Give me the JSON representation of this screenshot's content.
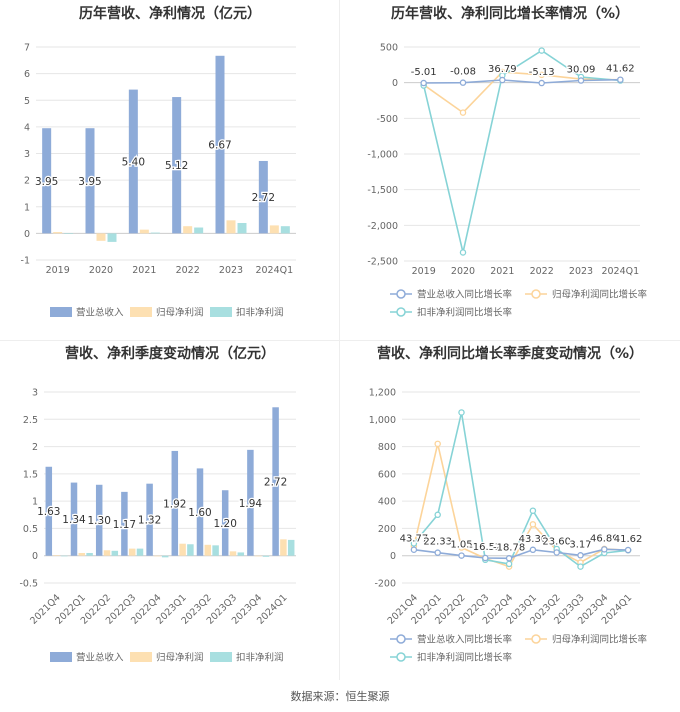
{
  "source_text": "数据来源：恒生聚源",
  "colors": {
    "revenue": "#8eabd8",
    "net_profit": "#fde0b2",
    "deducted_profit": "#a8dfe0",
    "revenue_line": "#8eabd8",
    "net_line": "#fcd49a",
    "deducted_line": "#86d3d6",
    "grid": "#e6e6e6",
    "axis_text": "#666666"
  },
  "chart_data": [
    {
      "type": "bar",
      "title": "历年营收、净利情况（亿元）",
      "categories": [
        "2019",
        "2020",
        "2021",
        "2022",
        "2023",
        "2024Q1"
      ],
      "ylim": [
        -1,
        7
      ],
      "yticks": [
        "-1",
        "0",
        "1",
        "2",
        "3",
        "4",
        "5",
        "6",
        "7"
      ],
      "series": [
        {
          "name": "营业总收入",
          "values": [
            3.95,
            3.95,
            5.4,
            5.12,
            6.67,
            2.72
          ],
          "labels": [
            "3.95",
            "3.95",
            "5.40",
            "5.12",
            "6.67",
            "2.72"
          ]
        },
        {
          "name": "归母净利润",
          "values": [
            0.05,
            -0.28,
            0.14,
            0.27,
            0.49,
            0.3
          ]
        },
        {
          "name": "扣非净利润",
          "values": [
            0.0,
            -0.32,
            0.03,
            0.22,
            0.39,
            0.27
          ]
        }
      ]
    },
    {
      "type": "line",
      "title": "历年营收、净利同比增长率情况（%）",
      "categories": [
        "2019",
        "2020",
        "2021",
        "2022",
        "2023",
        "2024Q1"
      ],
      "ylim": [
        -2500,
        500
      ],
      "yticks": [
        "-2,500",
        "-2,000",
        "-1,500",
        "-1,000",
        "-500",
        "0",
        "500"
      ],
      "series": [
        {
          "name": "营业总收入同比增长率",
          "values": [
            -5.01,
            -0.08,
            36.79,
            -5.13,
            30.09,
            41.62
          ],
          "labels": [
            "-5.01",
            "-0.08",
            "36.79",
            "-5.13",
            "30.09",
            "41.62"
          ]
        },
        {
          "name": "归母净利润同比增长率",
          "values": [
            -30,
            -420,
            150,
            110,
            50,
            40
          ]
        },
        {
          "name": "扣非净利润同比增长率",
          "values": [
            -40,
            -2380,
            100,
            450,
            80,
            30
          ]
        }
      ]
    },
    {
      "type": "bar",
      "title": "营收、净利季度变动情况（亿元）",
      "categories": [
        "2021Q4",
        "2022Q1",
        "2022Q2",
        "2022Q3",
        "2022Q4",
        "2023Q1",
        "2023Q2",
        "2023Q3",
        "2023Q4",
        "2024Q1"
      ],
      "ylim": [
        -0.5,
        3
      ],
      "yticks": [
        "-0.5",
        "0",
        "0.5",
        "1",
        "1.5",
        "2",
        "2.5",
        "3"
      ],
      "series": [
        {
          "name": "营业总收入",
          "values": [
            1.63,
            1.34,
            1.3,
            1.17,
            1.32,
            1.92,
            1.6,
            1.2,
            1.94,
            2.72
          ],
          "labels": [
            "1.63",
            "1.34",
            "1.30",
            "1.17",
            "1.32",
            "1.92",
            "1.60",
            "1.20",
            "1.94",
            "2.72"
          ]
        },
        {
          "name": "归母净利润",
          "values": [
            0.01,
            0.05,
            0.1,
            0.13,
            0.0,
            0.22,
            0.2,
            0.08,
            0.0,
            0.3
          ]
        },
        {
          "name": "扣非净利润",
          "values": [
            0.0,
            0.05,
            0.09,
            0.13,
            -0.03,
            0.21,
            0.19,
            0.06,
            -0.02,
            0.29
          ]
        }
      ]
    },
    {
      "type": "line",
      "title": "营收、净利同比增长率季度变动情况（%）",
      "categories": [
        "2021Q4",
        "2022Q1",
        "2022Q2",
        "2022Q3",
        "2022Q4",
        "2023Q1",
        "2023Q2",
        "2023Q3",
        "2023Q4",
        "2024Q1"
      ],
      "ylim": [
        -200,
        1200
      ],
      "yticks": [
        "-200",
        "0",
        "200",
        "400",
        "600",
        "800",
        "1,000",
        "1,200"
      ],
      "series": [
        {
          "name": "营业总收入同比增长率",
          "values": [
            43.77,
            22.33,
            1.05,
            -16.52,
            -18.78,
            43.3,
            23.6,
            3.17,
            46.8,
            41.62
          ],
          "labels": [
            "43.77",
            "22.33",
            "1.05",
            "-16.52",
            "-18.78",
            "43.30",
            "23.60",
            "3.17",
            "46.80",
            "41.62"
          ]
        },
        {
          "name": "归母净利润同比增长率",
          "values": [
            70,
            820,
            60,
            -20,
            -80,
            230,
            40,
            -50,
            50,
            40
          ]
        },
        {
          "name": "扣非净利润同比增长率",
          "values": [
            90,
            300,
            1050,
            -30,
            -60,
            330,
            50,
            -80,
            20,
            40
          ]
        }
      ]
    }
  ]
}
